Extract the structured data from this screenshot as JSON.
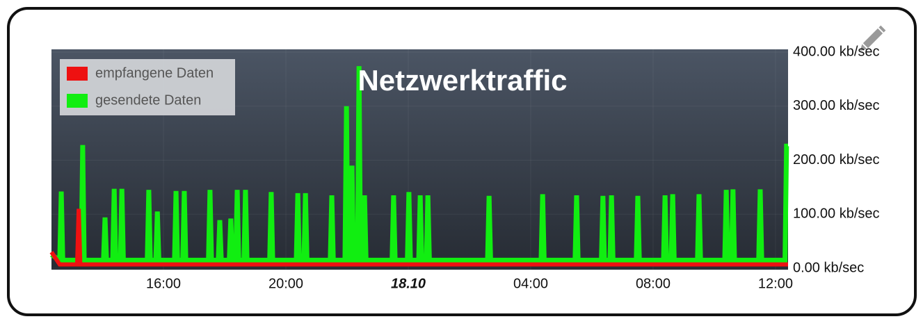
{
  "chart_data": {
    "type": "line",
    "title": "Netzwerktraffic",
    "legend": "upper left",
    "grid": true,
    "xlim": [
      12.34,
      36.41
    ],
    "xticks": [
      {
        "value": 16,
        "label": "16:00"
      },
      {
        "value": 20,
        "label": "20:00"
      },
      {
        "value": 24,
        "label": "18.10"
      },
      {
        "value": 28,
        "label": "04:00"
      },
      {
        "value": 32,
        "label": "08:00"
      },
      {
        "value": 36,
        "label": "12:00"
      }
    ],
    "ylim": [
      0,
      400
    ],
    "yticks": [
      {
        "value": 0,
        "label": "0.00 kb/sec"
      },
      {
        "value": 100,
        "label": "100.00 kb/sec"
      },
      {
        "value": 200,
        "label": "200.00 kb/sec"
      },
      {
        "value": 300,
        "label": "300.00 kb/sec"
      },
      {
        "value": 400,
        "label": "400.00 kb/sec"
      }
    ],
    "x": [
      12.34,
      12.61,
      12.66,
      12.71,
      13.18,
      13.23,
      13.28,
      13.31,
      13.36,
      13.41,
      14.04,
      14.09,
      14.14,
      14.34,
      14.39,
      14.44,
      14.59,
      14.64,
      14.69,
      15.47,
      15.52,
      15.57,
      15.75,
      15.8,
      15.85,
      16.36,
      16.41,
      16.46,
      16.63,
      16.68,
      16.73,
      17.47,
      17.52,
      17.57,
      17.79,
      17.84,
      17.89,
      18.15,
      18.2,
      18.25,
      18.36,
      18.41,
      18.46,
      18.63,
      18.68,
      18.73,
      19.47,
      19.52,
      19.57,
      20.34,
      20.39,
      20.44,
      20.59,
      20.64,
      20.69,
      21.45,
      21.5,
      21.55,
      21.93,
      21.98,
      22.03,
      22.11,
      22.16,
      22.21,
      22.34,
      22.39,
      22.44,
      22.52,
      22.57,
      22.62,
      23.47,
      23.52,
      23.57,
      23.97,
      24.02,
      24.07,
      24.34,
      24.39,
      24.44,
      24.59,
      24.64,
      24.69,
      26.59,
      26.64,
      26.69,
      28.34,
      28.39,
      28.44,
      29.45,
      29.5,
      29.55,
      30.31,
      30.36,
      30.41,
      30.59,
      30.64,
      30.69,
      31.45,
      31.5,
      31.55,
      32.34,
      32.39,
      32.44,
      32.59,
      32.64,
      32.69,
      33.45,
      33.5,
      33.55,
      34.34,
      34.39,
      34.44,
      34.56,
      34.61,
      34.66,
      35.45,
      35.5,
      35.55,
      36.31,
      36.36,
      36.41
    ],
    "series": [
      {
        "name": "empfangene Daten",
        "color": "#ee1111",
        "values": [
          30,
          7,
          7,
          7,
          7,
          110,
          7,
          7,
          7,
          7,
          7,
          7,
          7,
          7,
          7,
          7,
          7,
          7,
          7,
          7,
          7,
          7,
          7,
          7,
          7,
          7,
          7,
          7,
          7,
          7,
          7,
          7,
          7,
          7,
          7,
          7,
          7,
          7,
          7,
          7,
          7,
          7,
          7,
          7,
          7,
          7,
          7,
          7,
          7,
          7,
          7,
          7,
          7,
          7,
          7,
          7,
          7,
          7,
          7,
          7,
          7,
          7,
          7,
          7,
          7,
          7,
          7,
          7,
          7,
          7,
          7,
          7,
          7,
          7,
          7,
          7,
          7,
          7,
          7,
          7,
          7,
          7,
          7,
          7,
          7,
          7,
          7,
          7,
          7,
          7,
          7,
          7,
          7,
          7,
          7,
          7,
          7,
          7,
          7,
          7,
          7,
          7,
          7,
          7,
          7,
          7,
          7,
          7,
          7,
          7,
          7,
          7,
          7,
          7,
          7,
          7,
          7,
          7,
          7,
          7,
          7
        ]
      },
      {
        "name": "gesendete Daten",
        "color": "#11ee11",
        "values": [
          25,
          15,
          142,
          15,
          15,
          15,
          15,
          15,
          228,
          15,
          15,
          94,
          15,
          15,
          147,
          15,
          15,
          147,
          15,
          15,
          145,
          15,
          15,
          105,
          15,
          15,
          143,
          15,
          15,
          143,
          15,
          15,
          145,
          15,
          15,
          89,
          15,
          15,
          92,
          15,
          15,
          145,
          15,
          15,
          145,
          15,
          15,
          141,
          15,
          15,
          139,
          15,
          15,
          139,
          15,
          15,
          135,
          15,
          15,
          300,
          15,
          15,
          190,
          15,
          15,
          374,
          15,
          15,
          135,
          15,
          15,
          135,
          15,
          15,
          141,
          15,
          15,
          135,
          15,
          15,
          135,
          15,
          15,
          134,
          15,
          15,
          137,
          15,
          15,
          135,
          15,
          15,
          134,
          15,
          15,
          135,
          15,
          15,
          134,
          15,
          15,
          135,
          15,
          15,
          137,
          15,
          15,
          137,
          15,
          15,
          145,
          15,
          15,
          146,
          15,
          15,
          146,
          15,
          15,
          226,
          226
        ]
      }
    ]
  }
}
